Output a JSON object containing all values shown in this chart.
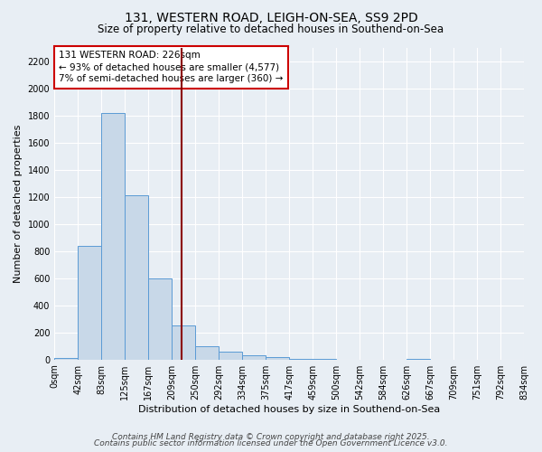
{
  "title": "131, WESTERN ROAD, LEIGH-ON-SEA, SS9 2PD",
  "subtitle": "Size of property relative to detached houses in Southend-on-Sea",
  "xlabel": "Distribution of detached houses by size in Southend-on-Sea",
  "ylabel": "Number of detached properties",
  "bin_edges": [
    0,
    42,
    83,
    125,
    167,
    209,
    250,
    292,
    334,
    375,
    417,
    459,
    500,
    542,
    584,
    626,
    667,
    709,
    751,
    792,
    834
  ],
  "bin_values": [
    10,
    840,
    1820,
    1210,
    600,
    250,
    100,
    55,
    30,
    20,
    5,
    5,
    0,
    0,
    0,
    5,
    0,
    0,
    0,
    0
  ],
  "bar_color": "#c8d8e8",
  "bar_edgecolor": "#5b9bd5",
  "vline_x": 226,
  "vline_color": "#8b0000",
  "annotation_text": "131 WESTERN ROAD: 226sqm\n← 93% of detached houses are smaller (4,577)\n7% of semi-detached houses are larger (360) →",
  "annotation_box_edgecolor": "#cc0000",
  "annotation_box_facecolor": "#ffffff",
  "ylim": [
    0,
    2300
  ],
  "yticks": [
    0,
    200,
    400,
    600,
    800,
    1000,
    1200,
    1400,
    1600,
    1800,
    2000,
    2200
  ],
  "xtick_labels": [
    "0sqm",
    "42sqm",
    "83sqm",
    "125sqm",
    "167sqm",
    "209sqm",
    "250sqm",
    "292sqm",
    "334sqm",
    "375sqm",
    "417sqm",
    "459sqm",
    "500sqm",
    "542sqm",
    "584sqm",
    "626sqm",
    "667sqm",
    "709sqm",
    "751sqm",
    "792sqm",
    "834sqm"
  ],
  "footer_line1": "Contains HM Land Registry data © Crown copyright and database right 2025.",
  "footer_line2": "Contains public sector information licensed under the Open Government Licence v3.0.",
  "background_color": "#e8eef4",
  "title_fontsize": 10,
  "subtitle_fontsize": 8.5,
  "axis_label_fontsize": 8,
  "tick_fontsize": 7,
  "annotation_fontsize": 7.5,
  "footer_fontsize": 6.5
}
